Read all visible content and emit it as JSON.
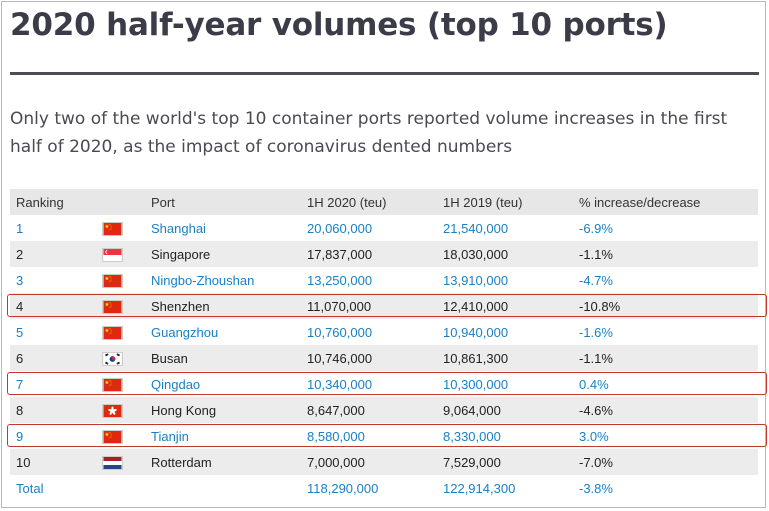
{
  "title": "2020 half-year volumes (top 10 ports)",
  "subtitle": "Only two of the world's top 10 container ports reported volume increases in the first half of 2020, as the impact of coronavirus dented numbers",
  "table": {
    "headers": [
      "Ranking",
      "",
      "Port",
      "1H 2020 (teu)",
      "1H 2019 (teu)",
      "% increase/decrease"
    ],
    "rows": [
      {
        "rank": "1",
        "flag": "china-flag-icon",
        "port": "Shanghai",
        "h1_2020": "20,060,000",
        "h1_2019": "21,540,000",
        "change": "-6.9%",
        "style": "link",
        "highlight": false
      },
      {
        "rank": "2",
        "flag": "singapore-flag-icon",
        "port": "Singapore",
        "h1_2020": "17,837,000",
        "h1_2019": "18,030,000",
        "change": "-1.1%",
        "style": "plain",
        "highlight": false
      },
      {
        "rank": "3",
        "flag": "china-flag-icon",
        "port": "Ningbo-Zhoushan",
        "h1_2020": "13,250,000",
        "h1_2019": "13,910,000",
        "change": "-4.7%",
        "style": "link",
        "highlight": false
      },
      {
        "rank": "4",
        "flag": "china-flag-icon",
        "port": "Shenzhen",
        "h1_2020": "11,070,000",
        "h1_2019": "12,410,000",
        "change": "-10.8%",
        "style": "plain",
        "highlight": true
      },
      {
        "rank": "5",
        "flag": "china-flag-icon",
        "port": "Guangzhou",
        "h1_2020": "10,760,000",
        "h1_2019": "10,940,000",
        "change": "-1.6%",
        "style": "link",
        "highlight": false
      },
      {
        "rank": "6",
        "flag": "south-korea-flag-icon",
        "port": "Busan",
        "h1_2020": "10,746,000",
        "h1_2019": "10,861,300",
        "change": "-1.1%",
        "style": "plain",
        "highlight": false
      },
      {
        "rank": "7",
        "flag": "china-flag-icon",
        "port": "Qingdao",
        "h1_2020": "10,340,000",
        "h1_2019": "10,300,000",
        "change": "0.4%",
        "style": "link",
        "highlight": true
      },
      {
        "rank": "8",
        "flag": "hong-kong-flag-icon",
        "port": "Hong Kong",
        "h1_2020": "8,647,000",
        "h1_2019": "9,064,000",
        "change": "-4.6%",
        "style": "plain",
        "highlight": false
      },
      {
        "rank": "9",
        "flag": "china-flag-icon",
        "port": "Tianjin",
        "h1_2020": "8,580,000",
        "h1_2019": "8,330,000",
        "change": "3.0%",
        "style": "link",
        "highlight": true
      },
      {
        "rank": "10",
        "flag": "netherlands-flag-icon",
        "port": "Rotterdam",
        "h1_2020": "7,000,000",
        "h1_2019": "7,529,000",
        "change": "-7.0%",
        "style": "plain",
        "highlight": false
      }
    ],
    "total": {
      "label": "Total",
      "h1_2020": "118,290,000",
      "h1_2019": "122,914,300",
      "change": "-3.8%"
    }
  },
  "colors": {
    "link_text": "#1a80c4",
    "highlight_border": "#c0392b",
    "header_bg": "#e7e7e7",
    "stripe_bg": "#ececec"
  }
}
